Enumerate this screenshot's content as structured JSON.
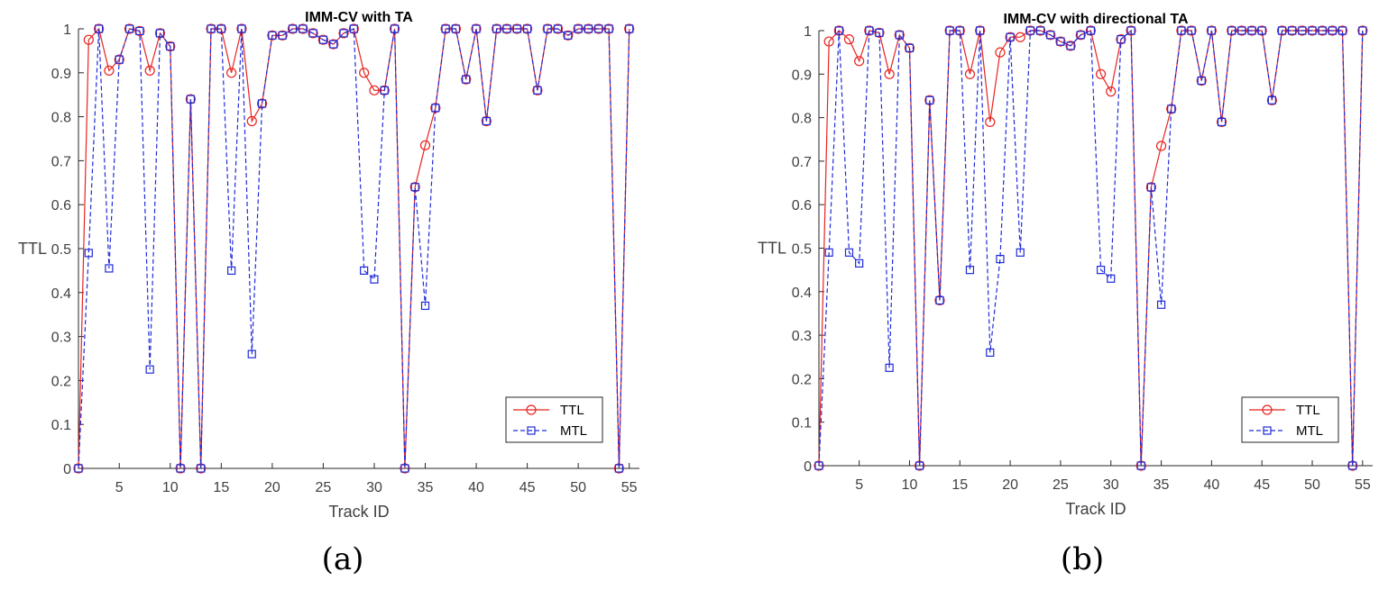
{
  "colors": {
    "ttl": "#e8231f",
    "mtl": "#1f2bd8",
    "axis": "#262626",
    "text": "#404040"
  },
  "chart_data": [
    {
      "type": "line",
      "panel_label": "(a)",
      "title": "IMM-CV with TA",
      "xlabel": "Track ID",
      "ylabel": "TTL",
      "xlim": [
        1,
        56
      ],
      "ylim": [
        0,
        1
      ],
      "xticks": [
        5,
        10,
        15,
        20,
        25,
        30,
        35,
        40,
        45,
        50,
        55
      ],
      "yticks": [
        0,
        0.1,
        0.2,
        0.3,
        0.4,
        0.5,
        0.6,
        0.7,
        0.8,
        0.9,
        1
      ],
      "ytick_labels": [
        "0",
        "0.1",
        "0.2",
        "0.3",
        "0.4",
        "0.5",
        "0.6",
        "0.7",
        "0.8",
        "0.9",
        "1"
      ],
      "legend_position": "lower-right",
      "x": [
        1,
        2,
        3,
        4,
        5,
        6,
        7,
        8,
        9,
        10,
        11,
        12,
        13,
        14,
        15,
        16,
        17,
        18,
        19,
        20,
        21,
        22,
        23,
        24,
        25,
        26,
        27,
        28,
        29,
        30,
        31,
        32,
        33,
        34,
        35,
        36,
        37,
        38,
        39,
        40,
        41,
        42,
        43,
        44,
        45,
        46,
        47,
        48,
        49,
        50,
        51,
        52,
        53,
        54,
        55
      ],
      "series": [
        {
          "name": "TTL",
          "marker": "circle",
          "line": "solid",
          "values": [
            0,
            0.975,
            1,
            0.905,
            0.93,
            1,
            0.995,
            0.905,
            0.99,
            0.96,
            0,
            0.84,
            0,
            1,
            1,
            0.9,
            1,
            0.79,
            0.83,
            0.985,
            0.985,
            1,
            1,
            0.99,
            0.975,
            0.965,
            0.99,
            1,
            0.9,
            0.86,
            0.86,
            1,
            0,
            0.64,
            0.735,
            0.82,
            1,
            1,
            0.885,
            1,
            0.79,
            1,
            1,
            1,
            1,
            0.86,
            1,
            1,
            0.985,
            1,
            1,
            1,
            1,
            0,
            1
          ]
        },
        {
          "name": "MTL",
          "marker": "square",
          "line": "dashed",
          "values": [
            0,
            0.49,
            1,
            0.455,
            0.93,
            1,
            0.995,
            0.225,
            0.99,
            0.96,
            0,
            0.84,
            0,
            1,
            1,
            0.45,
            1,
            0.26,
            0.83,
            0.985,
            0.985,
            1,
            1,
            0.99,
            0.975,
            0.965,
            0.99,
            1,
            0.45,
            0.43,
            0.86,
            1,
            0,
            0.64,
            0.37,
            0.82,
            1,
            1,
            0.885,
            1,
            0.79,
            1,
            1,
            1,
            1,
            0.86,
            1,
            1,
            0.985,
            1,
            1,
            1,
            1,
            0,
            1
          ]
        }
      ]
    },
    {
      "type": "line",
      "panel_label": "(b)",
      "title": "IMM-CV with directional TA",
      "xlabel": "Track ID",
      "ylabel": "TTL",
      "xlim": [
        1,
        56
      ],
      "ylim": [
        0,
        1
      ],
      "xticks": [
        5,
        10,
        15,
        20,
        25,
        30,
        35,
        40,
        45,
        50,
        55
      ],
      "yticks": [
        0,
        0.1,
        0.2,
        0.3,
        0.4,
        0.5,
        0.6,
        0.7,
        0.8,
        0.9,
        1
      ],
      "ytick_labels": [
        "0",
        "0.1",
        "0.2",
        "0.3",
        "0.4",
        "0.5",
        "0.6",
        "0.7",
        "0.8",
        "0.9",
        "1"
      ],
      "legend_position": "lower-right",
      "x": [
        1,
        2,
        3,
        4,
        5,
        6,
        7,
        8,
        9,
        10,
        11,
        12,
        13,
        14,
        15,
        16,
        17,
        18,
        19,
        20,
        21,
        22,
        23,
        24,
        25,
        26,
        27,
        28,
        29,
        30,
        31,
        32,
        33,
        34,
        35,
        36,
        37,
        38,
        39,
        40,
        41,
        42,
        43,
        44,
        45,
        46,
        47,
        48,
        49,
        50,
        51,
        52,
        53,
        54,
        55
      ],
      "series": [
        {
          "name": "TTL",
          "marker": "circle",
          "line": "solid",
          "values": [
            0,
            0.975,
            1,
            0.98,
            0.93,
            1,
            0.995,
            0.9,
            0.99,
            0.96,
            0,
            0.84,
            0.38,
            1,
            1,
            0.9,
            1,
            0.79,
            0.95,
            0.985,
            0.985,
            1,
            1,
            0.99,
            0.975,
            0.965,
            0.99,
            1,
            0.9,
            0.86,
            0.98,
            1,
            0,
            0.64,
            0.735,
            0.82,
            1,
            1,
            0.885,
            1,
            0.79,
            1,
            1,
            1,
            1,
            0.84,
            1,
            1,
            1,
            1,
            1,
            1,
            1,
            0,
            1
          ]
        },
        {
          "name": "MTL",
          "marker": "square",
          "line": "dashed",
          "values": [
            0,
            0.49,
            1,
            0.49,
            0.465,
            1,
            0.995,
            0.225,
            0.99,
            0.96,
            0,
            0.84,
            0.38,
            1,
            1,
            0.45,
            1,
            0.26,
            0.475,
            0.985,
            0.49,
            1,
            1,
            0.99,
            0.975,
            0.965,
            0.99,
            1,
            0.45,
            0.43,
            0.98,
            1,
            0,
            0.64,
            0.37,
            0.82,
            1,
            1,
            0.885,
            1,
            0.79,
            1,
            1,
            1,
            1,
            0.84,
            1,
            1,
            1,
            1,
            1,
            1,
            1,
            0,
            1
          ]
        }
      ]
    }
  ]
}
